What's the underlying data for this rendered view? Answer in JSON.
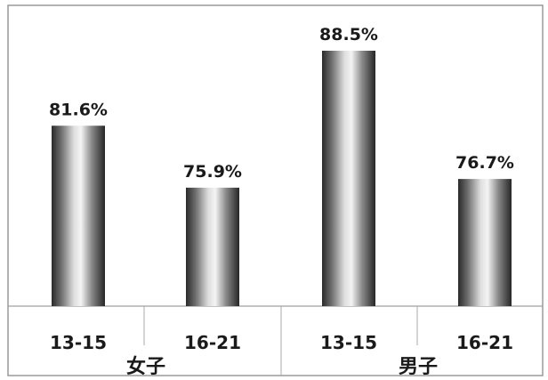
{
  "chart_data": {
    "type": "bar",
    "categories": [
      "13-15",
      "16-21",
      "13-15",
      "16-21"
    ],
    "groups": [
      {
        "label": "女子",
        "categories": [
          "13-15",
          "16-21"
        ]
      },
      {
        "label": "男子",
        "categories": [
          "13-15",
          "16-21"
        ]
      }
    ],
    "values": [
      81.6,
      75.9,
      88.5,
      76.7
    ],
    "value_labels": [
      "81.6%",
      "75.9%",
      "88.5%",
      "76.7%"
    ],
    "ylim": [
      65,
      90
    ],
    "grid": false,
    "legend": "none"
  }
}
